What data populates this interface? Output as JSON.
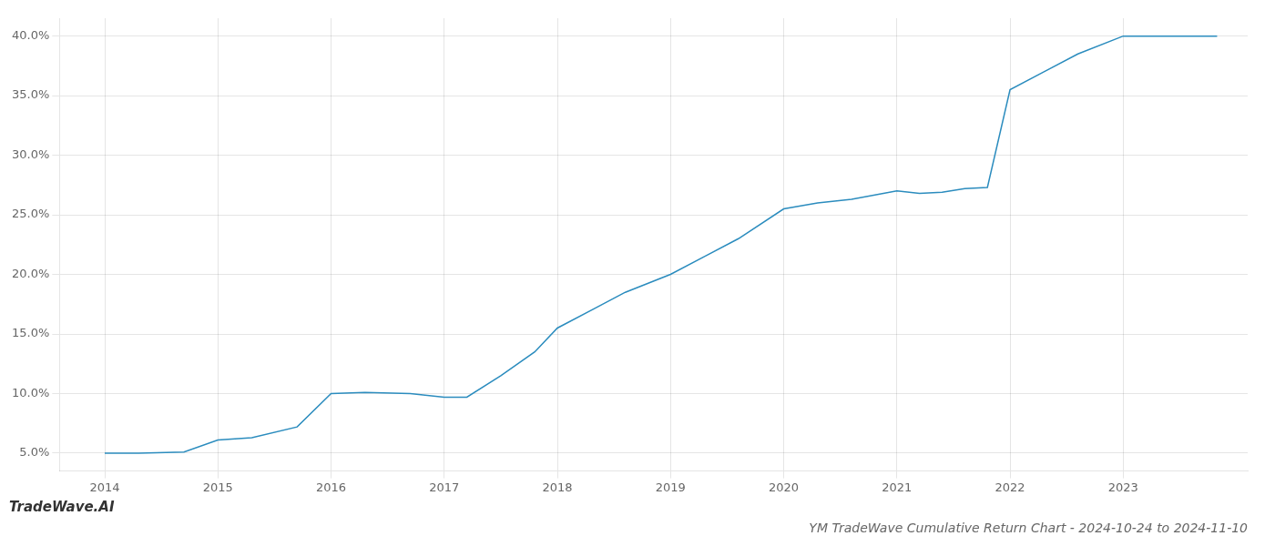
{
  "chart_data": {
    "type": "line",
    "title": "YM TradeWave Cumulative Return Chart - 2024-10-24 to 2024-11-10",
    "annotations": [
      "TradeWave.AI"
    ],
    "x": [
      2014.0,
      2014.3,
      2014.7,
      2015.0,
      2015.3,
      2015.7,
      2016.0,
      2016.3,
      2016.7,
      2017.0,
      2017.2,
      2017.5,
      2017.8,
      2018.0,
      2018.3,
      2018.6,
      2019.0,
      2019.3,
      2019.6,
      2020.0,
      2020.3,
      2020.6,
      2021.0,
      2021.2,
      2021.4,
      2021.6,
      2021.8,
      2022.0,
      2022.3,
      2022.6,
      2023.0,
      2023.5,
      2023.83
    ],
    "values": [
      5.0,
      5.0,
      5.1,
      6.1,
      6.3,
      7.2,
      10.0,
      10.1,
      10.0,
      9.7,
      9.7,
      11.5,
      13.5,
      15.5,
      17.0,
      18.5,
      20.0,
      21.5,
      23.0,
      25.5,
      26.0,
      26.3,
      27.0,
      26.8,
      26.9,
      27.2,
      27.3,
      35.5,
      37.0,
      38.5,
      40.0,
      40.0,
      40.0
    ],
    "color": "#2b8cbe",
    "xlim": [
      2013.6,
      2024.1
    ],
    "ylim": [
      3.5,
      41.5
    ],
    "xticks": [
      2014,
      2015,
      2016,
      2017,
      2018,
      2019,
      2020,
      2021,
      2022,
      2023
    ],
    "yticks": [
      {
        "value": 5.0,
        "label": "5.0%"
      },
      {
        "value": 10.0,
        "label": "10.0%"
      },
      {
        "value": 15.0,
        "label": "15.0%"
      },
      {
        "value": 20.0,
        "label": "20.0%"
      },
      {
        "value": 25.0,
        "label": "25.0%"
      },
      {
        "value": 30.0,
        "label": "30.0%"
      },
      {
        "value": 35.0,
        "label": "35.0%"
      },
      {
        "value": 40.0,
        "label": "40.0%"
      }
    ],
    "grid": true
  }
}
